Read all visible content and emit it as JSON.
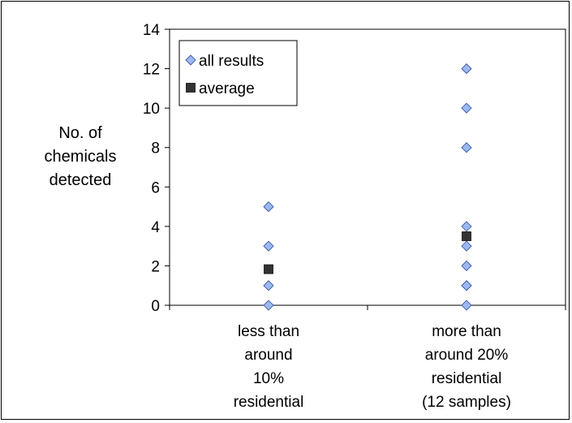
{
  "chart_data": {
    "type": "scatter",
    "title": "",
    "ylabel_lines": [
      "No. of",
      "chemicals",
      "detected"
    ],
    "ylim": [
      0,
      14
    ],
    "yticks": [
      0,
      2,
      4,
      6,
      8,
      10,
      12,
      14
    ],
    "categories": [
      [
        "less than",
        "around",
        "10%",
        "residential"
      ],
      [
        "more than",
        "around 20%",
        "residential",
        "(12 samples)"
      ]
    ],
    "series": [
      {
        "name": "all results",
        "marker": "diamond",
        "color": "#9db8f0",
        "points": [
          {
            "category": 0,
            "y": 0
          },
          {
            "category": 0,
            "y": 1
          },
          {
            "category": 0,
            "y": 3
          },
          {
            "category": 0,
            "y": 5
          },
          {
            "category": 1,
            "y": 0
          },
          {
            "category": 1,
            "y": 1
          },
          {
            "category": 1,
            "y": 1
          },
          {
            "category": 1,
            "y": 2
          },
          {
            "category": 1,
            "y": 3
          },
          {
            "category": 1,
            "y": 4
          },
          {
            "category": 1,
            "y": 8
          },
          {
            "category": 1,
            "y": 10
          },
          {
            "category": 1,
            "y": 12
          }
        ]
      },
      {
        "name": "average",
        "marker": "square",
        "color": "#333333",
        "points": [
          {
            "category": 0,
            "y": 1.83
          },
          {
            "category": 1,
            "y": 3.5
          }
        ]
      }
    ],
    "legend_position": "top-left",
    "grid": false
  }
}
